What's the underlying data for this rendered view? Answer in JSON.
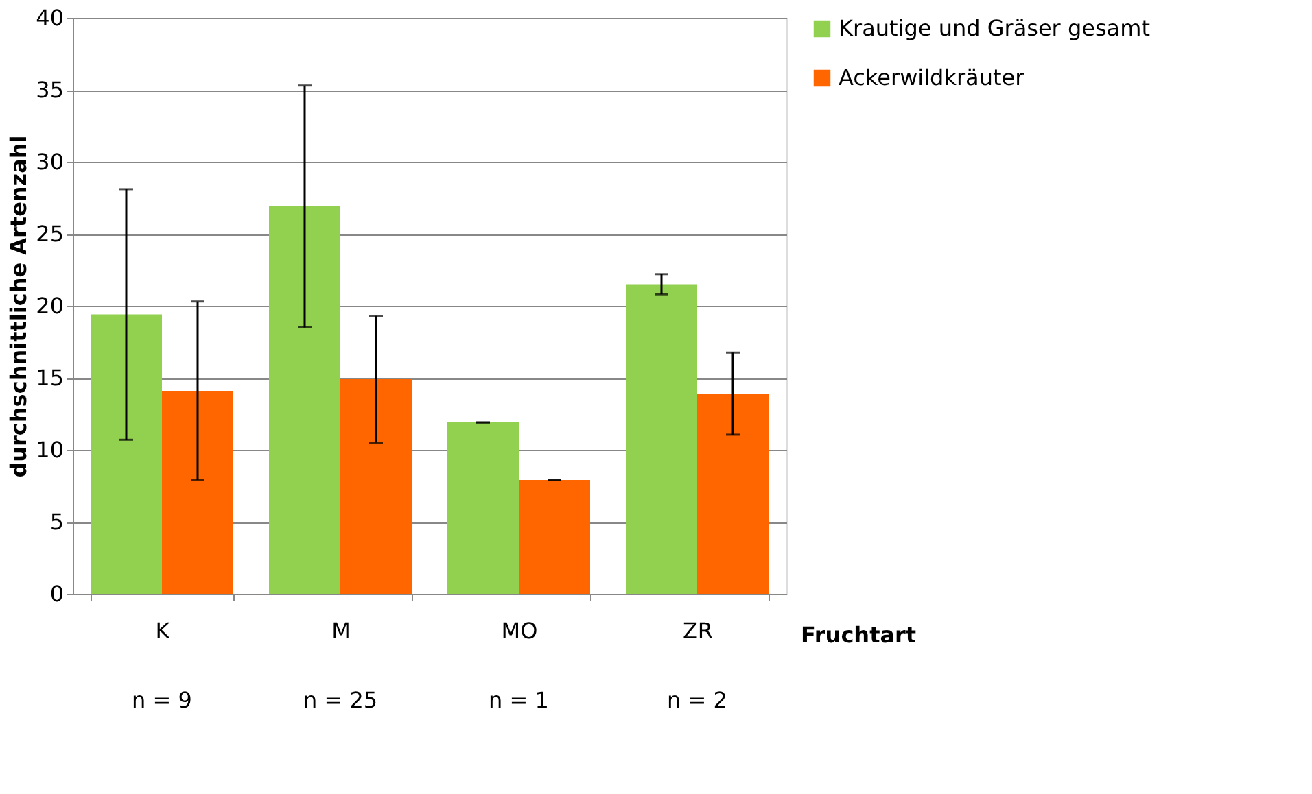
{
  "chart_data": {
    "type": "bar",
    "xlabel": "Fruchtart",
    "ylabel": "durchschnittliche Artenzahl",
    "categories": [
      "K",
      "M",
      "MO",
      "ZR"
    ],
    "series": [
      {
        "name": "Krautige und Gräser gesamt",
        "color": "#92d050",
        "values": [
          19.4,
          26.9,
          11.9,
          21.5
        ],
        "errors": [
          8.7,
          8.4,
          0,
          0.7
        ]
      },
      {
        "name": "Ackerwildkräuter",
        "color": "#ff6600",
        "values": [
          14.1,
          14.9,
          7.9,
          13.9
        ],
        "errors": [
          6.2,
          4.4,
          0,
          2.85
        ]
      }
    ],
    "ylim": [
      0,
      40
    ],
    "yticks": [
      0,
      5,
      10,
      15,
      20,
      25,
      30,
      35,
      40
    ],
    "grid": "y",
    "legend": "right",
    "annotations": [
      "n = 9",
      "n = 25",
      "n = 1",
      "n = 2"
    ]
  }
}
